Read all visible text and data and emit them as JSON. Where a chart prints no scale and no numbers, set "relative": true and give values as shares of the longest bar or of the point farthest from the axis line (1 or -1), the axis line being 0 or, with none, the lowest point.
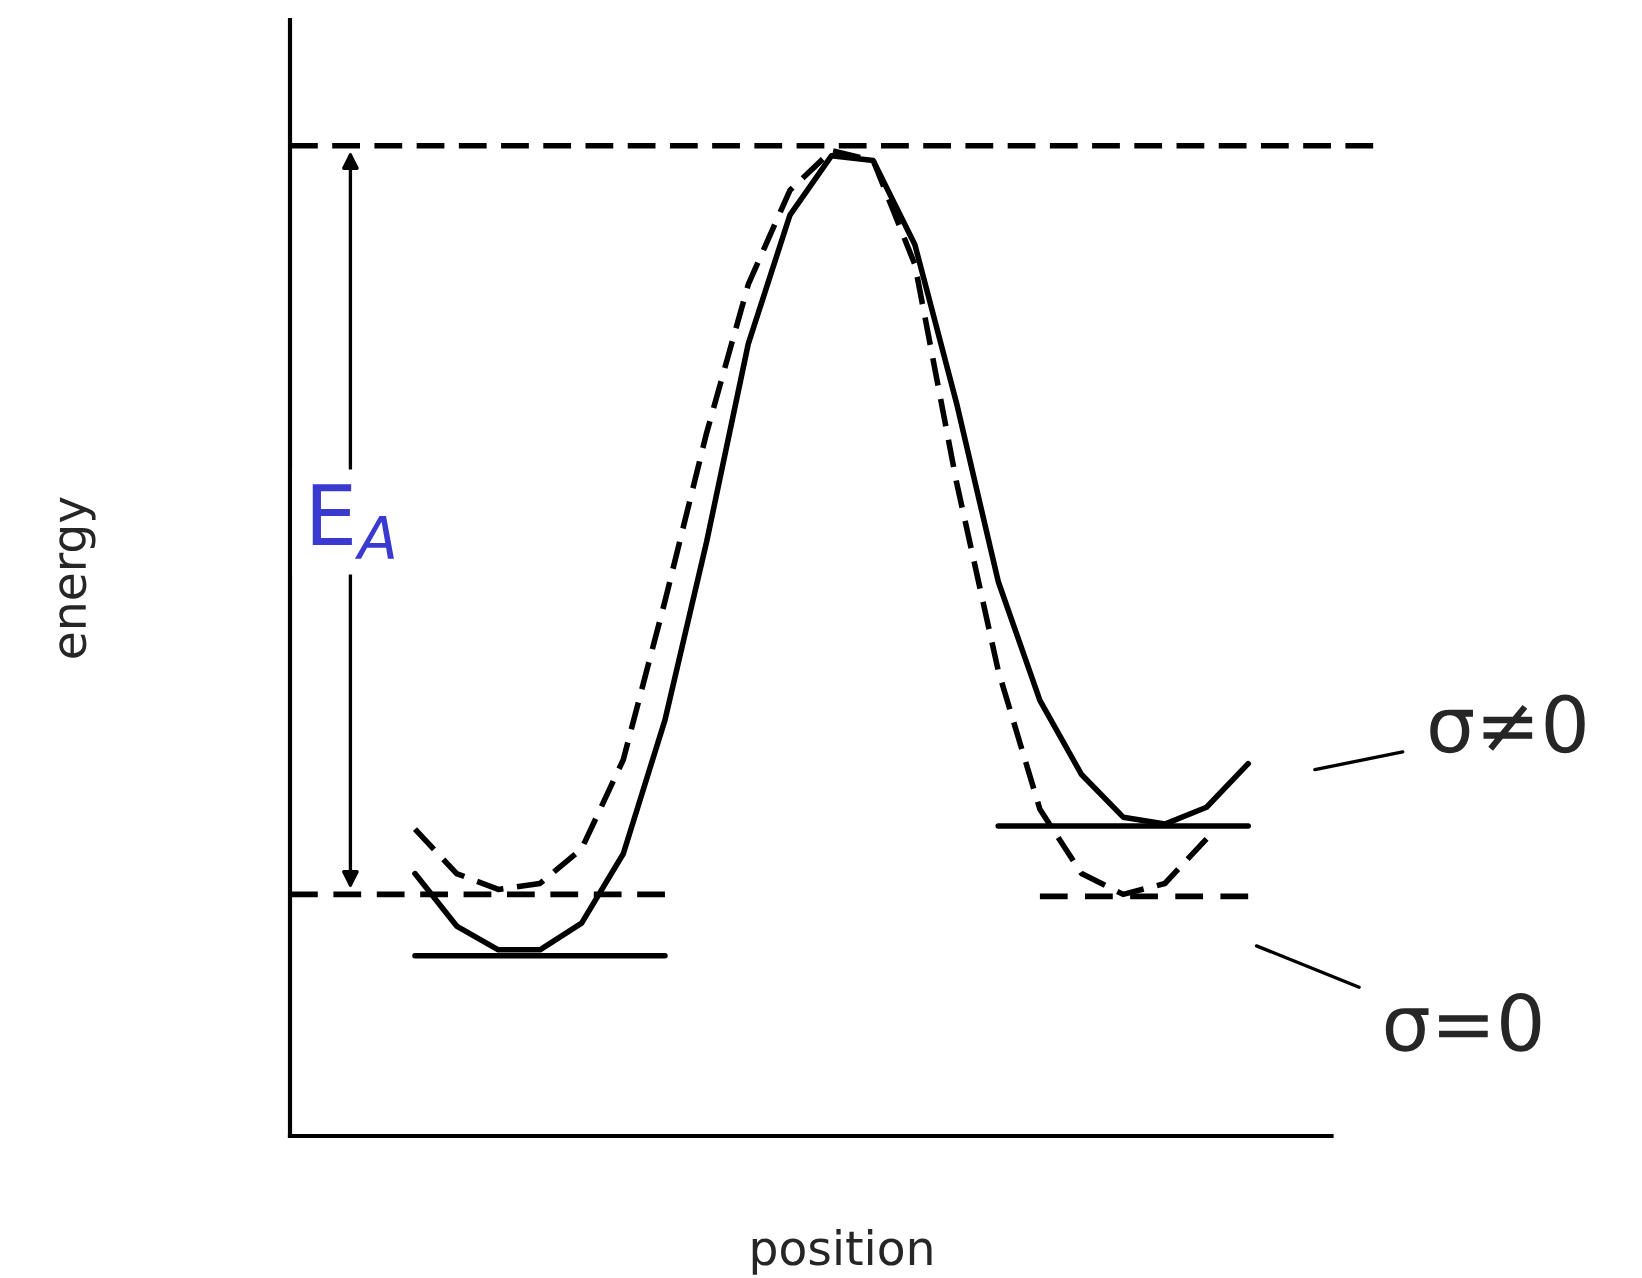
{
  "chart_data": {
    "type": "line",
    "relative": true,
    "xlabel": "position",
    "ylabel": "energy",
    "categories": [
      null,
      null,
      null,
      null,
      null,
      null,
      null,
      null,
      null,
      null,
      null,
      null,
      null,
      null,
      null,
      null,
      null,
      null,
      null,
      null,
      null,
      null,
      null,
      null,
      null,
      null,
      null
    ],
    "series": [
      {
        "color": "#000000",
        "line_style": "solid",
        "values": [
          null,
          null,
          null,
          0.265,
          0.212,
          0.188,
          0.188,
          0.215,
          0.285,
          0.42,
          0.6,
          0.8,
          0.93,
          0.99,
          0.985,
          0.9,
          0.74,
          0.56,
          0.44,
          0.365,
          0.322,
          0.315,
          0.332,
          0.376,
          null,
          null,
          null
        ]
      },
      {
        "color": "#000000",
        "line_style": "dashed",
        "values": [
          null,
          null,
          null,
          0.31,
          0.265,
          0.249,
          0.255,
          0.29,
          0.38,
          0.54,
          0.71,
          0.86,
          0.955,
          0.995,
          0.985,
          0.88,
          0.66,
          0.47,
          0.33,
          0.265,
          0.244,
          0.255,
          0.3,
          null,
          null,
          null,
          null
        ]
      },
      {
        "color": "#000000",
        "line_style": "solid",
        "values": [
          null,
          null,
          null,
          0.182,
          0.182,
          0.182,
          0.182,
          0.182,
          0.182,
          0.182,
          null,
          null,
          null,
          null,
          null,
          null,
          null,
          null,
          null,
          null,
          null,
          null,
          null,
          null,
          null,
          null,
          null
        ]
      },
      {
        "color": "#000000",
        "line_style": "solid",
        "values": [
          null,
          null,
          null,
          null,
          null,
          null,
          null,
          null,
          null,
          null,
          null,
          null,
          null,
          null,
          null,
          null,
          null,
          0.313,
          0.313,
          0.313,
          0.313,
          0.313,
          0.313,
          0.313,
          null,
          null,
          null
        ]
      },
      {
        "color": "#000000",
        "line_style": "dashed",
        "values": [
          1.0,
          1.0,
          1.0,
          1.0,
          1.0,
          1.0,
          1.0,
          1.0,
          1.0,
          1.0,
          1.0,
          1.0,
          1.0,
          1.0,
          1.0,
          1.0,
          1.0,
          1.0,
          1.0,
          1.0,
          1.0,
          1.0,
          1.0,
          1.0,
          1.0,
          1.0,
          1.0
        ]
      },
      {
        "color": "#000000",
        "line_style": "dashed",
        "values": [
          0.244,
          0.244,
          0.244,
          0.244,
          0.244,
          0.244,
          0.244,
          0.244,
          0.244,
          0.244,
          null,
          null,
          null,
          null,
          null,
          null,
          null,
          null,
          null,
          null,
          null,
          null,
          null,
          null,
          null,
          null,
          null
        ]
      },
      {
        "color": "#000000",
        "line_style": "dashed",
        "values": [
          null,
          null,
          null,
          null,
          null,
          null,
          null,
          null,
          null,
          null,
          null,
          null,
          null,
          null,
          null,
          null,
          null,
          null,
          0.242,
          0.242,
          0.242,
          0.242,
          0.242,
          0.242,
          null,
          null,
          null
        ]
      }
    ],
    "annotations": [
      "E$_{A}$",
      "σ≠0",
      "σ=0"
    ]
  }
}
